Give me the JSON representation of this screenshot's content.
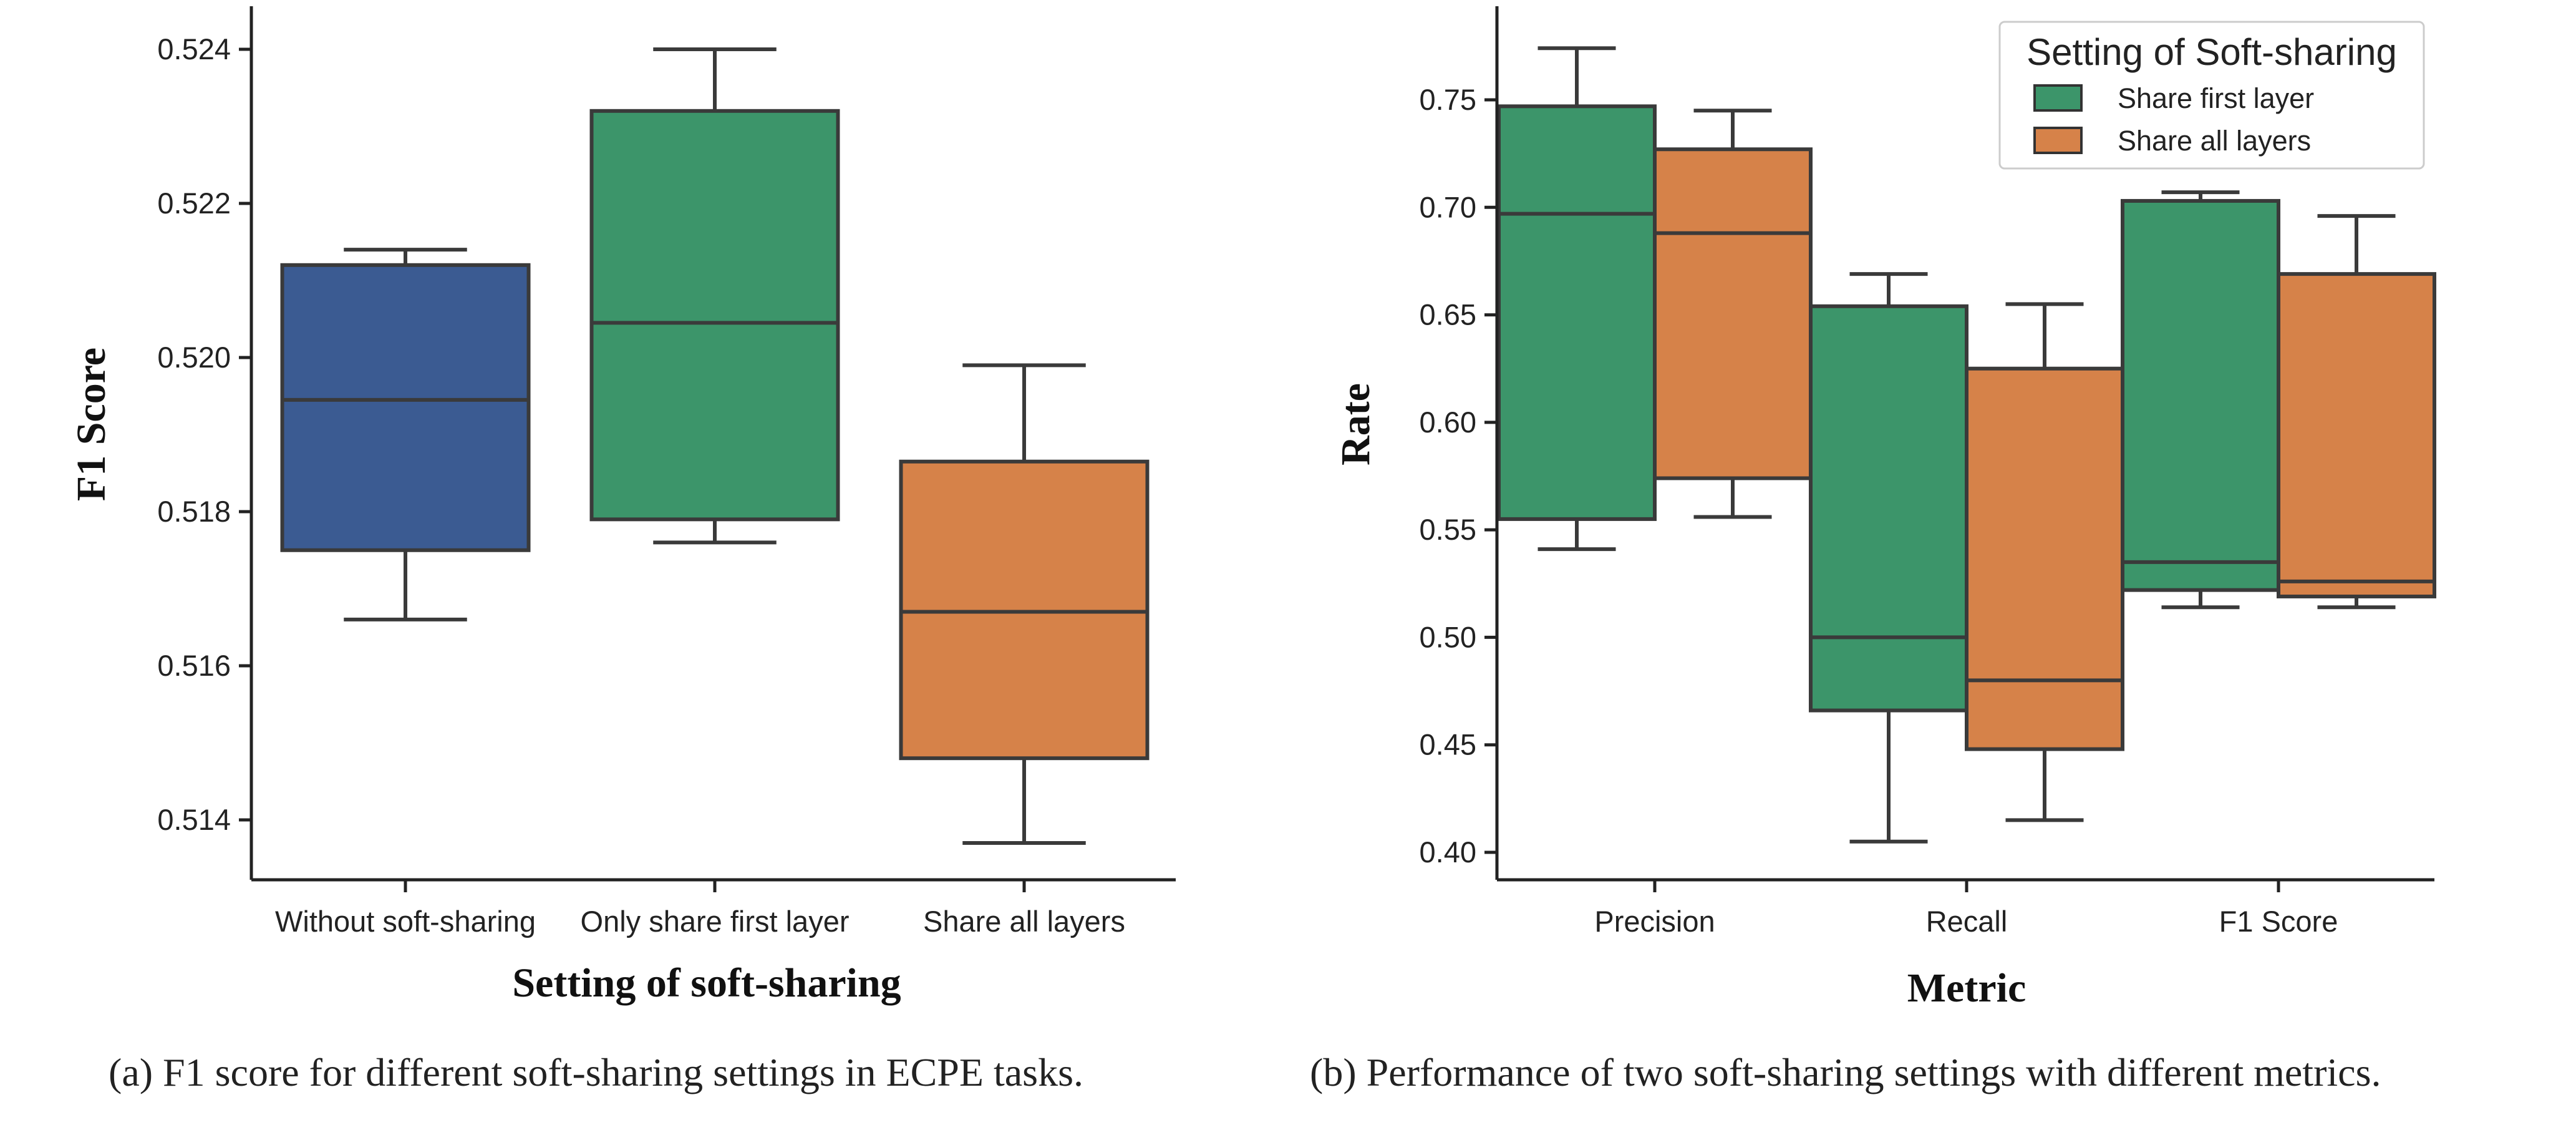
{
  "chart_data": [
    {
      "type": "box",
      "ylabel": "F1 Score",
      "xlabel": "Setting of soft-sharing",
      "ylim": [
        0.5132,
        0.5245
      ],
      "yticks": [
        "0.514",
        "0.516",
        "0.518",
        "0.520",
        "0.522",
        "0.524"
      ],
      "categories": [
        "Without soft-sharing",
        "Only share first layer",
        "Share all layers"
      ],
      "boxes": [
        {
          "name": "Without soft-sharing",
          "color": "#3b5b92",
          "min": 0.5166,
          "q1": 0.5175,
          "median": 0.51945,
          "q3": 0.5212,
          "max": 0.5214
        },
        {
          "name": "Only share first layer",
          "color": "#3c956a",
          "min": 0.5176,
          "q1": 0.5179,
          "median": 0.52045,
          "q3": 0.5232,
          "max": 0.524
        },
        {
          "name": "Share all layers",
          "color": "#d68249",
          "min": 0.5137,
          "q1": 0.5148,
          "median": 0.5167,
          "q3": 0.51865,
          "max": 0.5199
        }
      ],
      "caption": "(a)  F1 score for different soft-sharing settings in ECPE tasks."
    },
    {
      "type": "box",
      "ylabel": "Rate",
      "xlabel": "Metric",
      "ylim": [
        0.385,
        0.79
      ],
      "yticks": [
        "0.40",
        "0.45",
        "0.50",
        "0.55",
        "0.60",
        "0.65",
        "0.70",
        "0.75"
      ],
      "categories": [
        "Precision",
        "Recall",
        "F1 Score"
      ],
      "legend": {
        "title": "Setting of Soft-sharing",
        "placement": "top-right",
        "entries": [
          {
            "name": "Share first layer",
            "color": "#3c956a"
          },
          {
            "name": "Share all layers",
            "color": "#d68249"
          }
        ]
      },
      "series": [
        {
          "name": "Share first layer",
          "color": "#3c956a",
          "boxes": [
            {
              "category": "Precision",
              "min": 0.541,
              "q1": 0.555,
              "median": 0.697,
              "q3": 0.747,
              "max": 0.774
            },
            {
              "category": "Recall",
              "min": 0.405,
              "q1": 0.466,
              "median": 0.5,
              "q3": 0.654,
              "max": 0.669
            },
            {
              "category": "F1 Score",
              "min": 0.514,
              "q1": 0.522,
              "median": 0.535,
              "q3": 0.703,
              "max": 0.707
            }
          ]
        },
        {
          "name": "Share all layers",
          "color": "#d68249",
          "boxes": [
            {
              "category": "Precision",
              "min": 0.556,
              "q1": 0.574,
              "median": 0.688,
              "q3": 0.727,
              "max": 0.745
            },
            {
              "category": "Recall",
              "min": 0.415,
              "q1": 0.448,
              "median": 0.48,
              "q3": 0.625,
              "max": 0.655
            },
            {
              "category": "F1 Score",
              "min": 0.514,
              "q1": 0.519,
              "median": 0.526,
              "q3": 0.669,
              "max": 0.696
            }
          ]
        }
      ],
      "caption": "(b)  Performance of two soft-sharing settings with different metrics."
    }
  ]
}
